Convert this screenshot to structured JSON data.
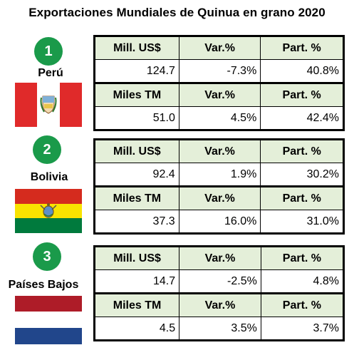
{
  "title": "Exportaciones Mundiales de Quinua en grano 2020",
  "colors": {
    "rank_circle": "#1a9a4a",
    "header_fill": "#e4efd9",
    "peru_red": "#e02a2a",
    "bolivia_red": "#d52b1e",
    "bolivia_yellow": "#f9e300",
    "bolivia_green": "#007a3d",
    "nl_red": "#ae1c28",
    "nl_blue": "#21468b"
  },
  "countries": [
    {
      "rank": "1",
      "name": "Perú",
      "flag_icon": "peru-flag-icon",
      "value_headers": [
        "Mill. US$",
        "Var.%",
        "Part. %"
      ],
      "value_row": [
        "124.7",
        "-7.3%",
        "40.8%"
      ],
      "volume_headers": [
        "Miles TM",
        "Var.%",
        "Part. %"
      ],
      "volume_row": [
        "51.0",
        "4.5%",
        "42.4%"
      ]
    },
    {
      "rank": "2",
      "name": "Bolivia",
      "flag_icon": "bolivia-flag-icon",
      "value_headers": [
        "Mill. US$",
        "Var.%",
        "Part. %"
      ],
      "value_row": [
        "92.4",
        "1.9%",
        "30.2%"
      ],
      "volume_headers": [
        "Miles TM",
        "Var.%",
        "Part. %"
      ],
      "volume_row": [
        "37.3",
        "16.0%",
        "31.0%"
      ]
    },
    {
      "rank": "3",
      "name": "Países Bajos",
      "flag_icon": "netherlands-flag-icon",
      "value_headers": [
        "Mill. US$",
        "Var.%",
        "Part. %"
      ],
      "value_row": [
        "14.7",
        "-2.5%",
        "4.8%"
      ],
      "volume_headers": [
        "Miles TM",
        "Var.%",
        "Part. %"
      ],
      "volume_row": [
        "4.5",
        "3.5%",
        "3.7%"
      ]
    }
  ]
}
